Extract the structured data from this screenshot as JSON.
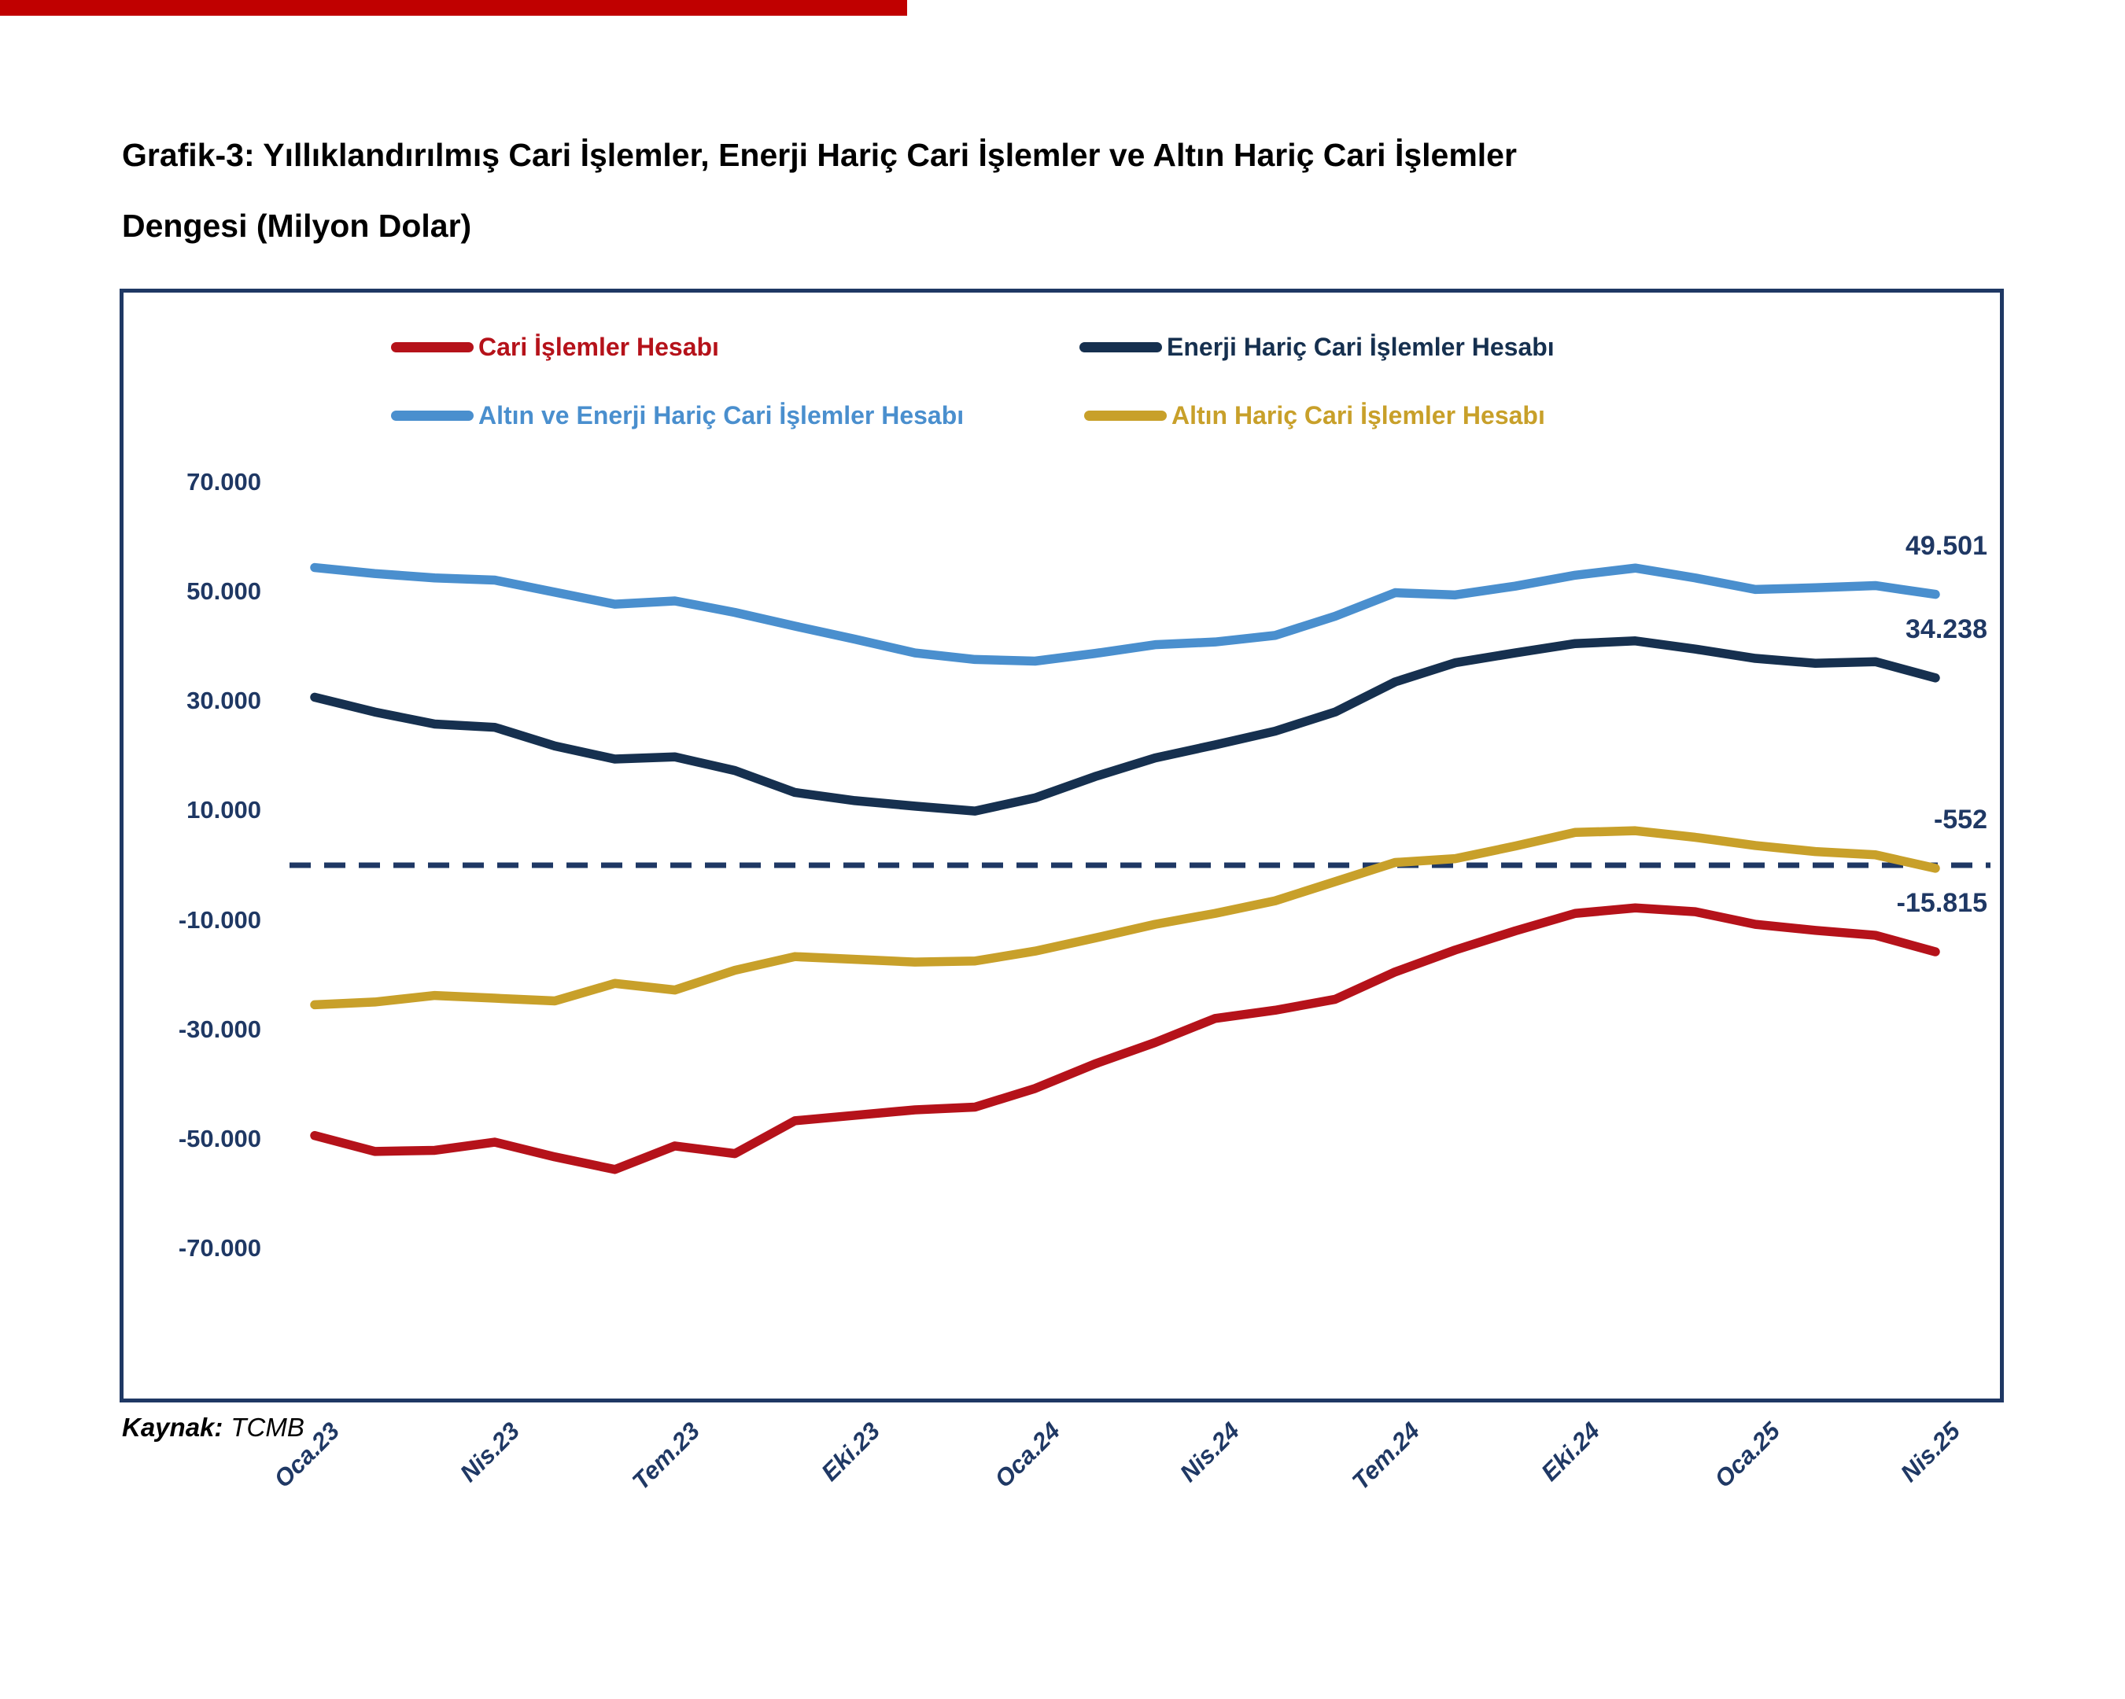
{
  "page": {
    "background": "#ffffff",
    "top_bar_color": "#c00000",
    "frame_border_color": "#1f3864",
    "axis_text_color": "#1f3864"
  },
  "title": {
    "lines": [
      "Grafik-3: Yıllıklandırılmış Cari İşlemler, Enerji Hariç Cari İşlemler ve Altın Hariç Cari İşlemler",
      "Dengesi (Milyon Dolar)"
    ]
  },
  "source": {
    "label": "Kaynak:",
    "value": "TCMB"
  },
  "chart_data": {
    "type": "line",
    "title": "Yıllıklandırılmış Cari İşlemler Dengesi (Milyon Dolar)",
    "xlabel": "",
    "ylabel": "",
    "ylim": [
      -70000,
      70000
    ],
    "grid": false,
    "legend_position": "top",
    "zero_line": {
      "style": "dashed",
      "color": "#1f3864",
      "value": 0
    },
    "y_ticks": [
      {
        "value": 70000,
        "label": "70.000"
      },
      {
        "value": 50000,
        "label": "50.000"
      },
      {
        "value": 30000,
        "label": "30.000"
      },
      {
        "value": 10000,
        "label": "10.000"
      },
      {
        "value": -10000,
        "label": "-10.000"
      },
      {
        "value": -30000,
        "label": "-30.000"
      },
      {
        "value": -50000,
        "label": "-50.000"
      },
      {
        "value": -70000,
        "label": "-70.000"
      }
    ],
    "x_tick_labels": [
      "Oca.23",
      "Nis.23",
      "Tem.23",
      "Eki.23",
      "Oca.24",
      "Nis.24",
      "Tem.24",
      "Eki.24",
      "Oca.25",
      "Nis.25"
    ],
    "x_tick_interval": 3,
    "n_points": 28,
    "series": [
      {
        "name": "Cari İşlemler Hesabı",
        "color": "#b5121a",
        "end_label": "-15.815",
        "values": [
          -49400,
          -52300,
          -52100,
          -50600,
          -53300,
          -55600,
          -51300,
          -52700,
          -46700,
          -45700,
          -44700,
          -44200,
          -40800,
          -36300,
          -32400,
          -28000,
          -26500,
          -24500,
          -19500,
          -15500,
          -12000,
          -8800,
          -7800,
          -8500,
          -10800,
          -11900,
          -12800,
          -15815
        ]
      },
      {
        "name": "Enerji Hariç Cari İşlemler Hesabı",
        "color": "#16304f",
        "end_label": "34.238",
        "values": [
          30700,
          28000,
          25800,
          25200,
          21800,
          19400,
          19800,
          17300,
          13300,
          11800,
          10800,
          9900,
          12300,
          16200,
          19600,
          22000,
          24500,
          28000,
          33500,
          37000,
          38800,
          40500,
          41000,
          39500,
          37800,
          36900,
          37200,
          34238
        ]
      },
      {
        "name": "Altın ve Enerji Hariç Cari İşlemler Hesabı",
        "color": "#4a8fce",
        "end_label": "49.501",
        "values": [
          54400,
          53300,
          52500,
          52100,
          49900,
          47700,
          48300,
          46200,
          43700,
          41300,
          38800,
          37600,
          37300,
          38700,
          40300,
          40800,
          42000,
          45500,
          49800,
          49400,
          51000,
          53000,
          54300,
          52500,
          50400,
          50700,
          51100,
          49501
        ]
      },
      {
        "name": "Altın Hariç Cari İşlemler Hesabı",
        "color": "#c8a02a",
        "end_label": "-552",
        "values": [
          -25500,
          -25000,
          -23800,
          -24300,
          -24800,
          -21600,
          -22800,
          -19200,
          -16700,
          -17200,
          -17700,
          -17500,
          -15700,
          -13300,
          -10800,
          -8800,
          -6500,
          -3000,
          500,
          1200,
          3500,
          6000,
          6300,
          5100,
          3600,
          2500,
          1900,
          -552
        ]
      }
    ]
  }
}
